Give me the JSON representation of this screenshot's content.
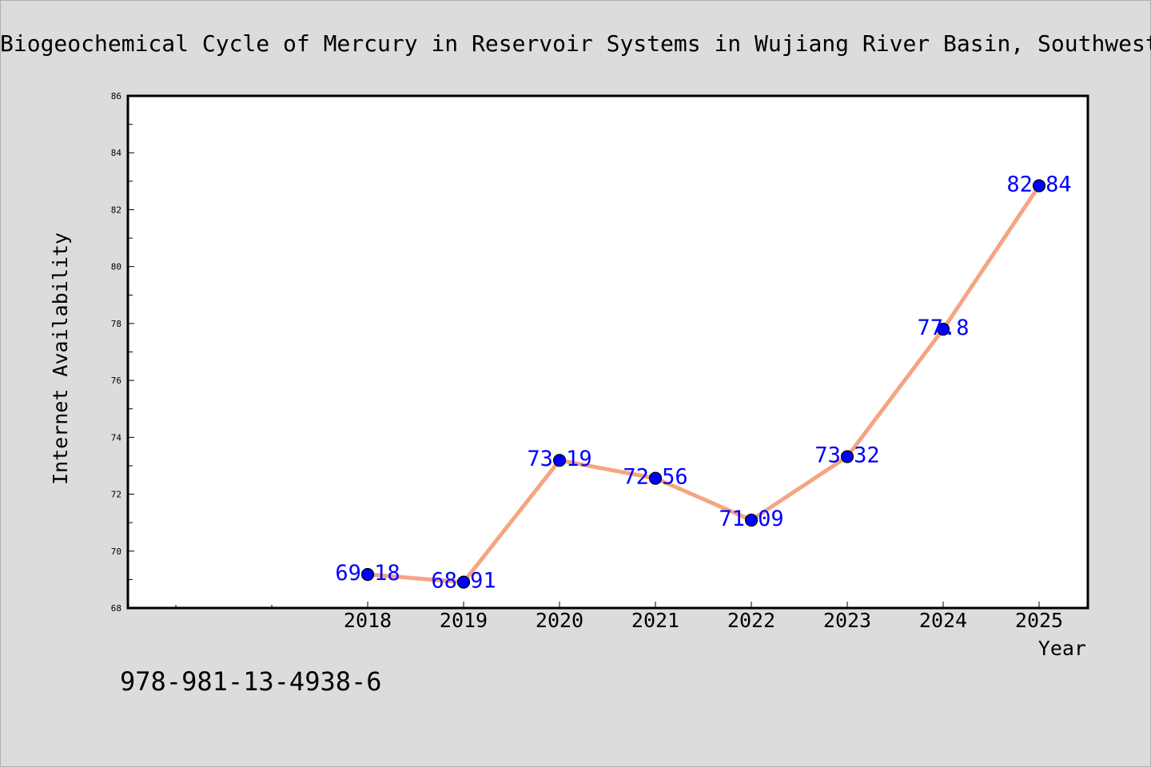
{
  "chart_data": {
    "type": "line",
    "title": "Biogeochemical Cycle of Mercury in Reservoir Systems in Wujiang River Basin, Southwest China",
    "xlabel": "Year",
    "ylabel": "Internet Availability",
    "categories": [
      "2018",
      "2019",
      "2020",
      "2021",
      "2022",
      "2023",
      "2024",
      "2025"
    ],
    "values": [
      69.18,
      68.91,
      73.19,
      72.56,
      71.09,
      73.32,
      77.8,
      82.84
    ],
    "value_labels": [
      "69.18",
      "68.91",
      "73.19",
      "72.56",
      "71.09",
      "73.32",
      "77.8",
      "82.84"
    ],
    "ylim": [
      68,
      86
    ],
    "yticks": [
      "68",
      "70",
      "72",
      "74",
      "76",
      "78",
      "80",
      "82",
      "84",
      "86"
    ],
    "grid": false,
    "line_color": "#f4a582",
    "marker_color": "#0000ff",
    "label_color": "#0000ff"
  },
  "footer_text": "978-981-13-4938-6"
}
